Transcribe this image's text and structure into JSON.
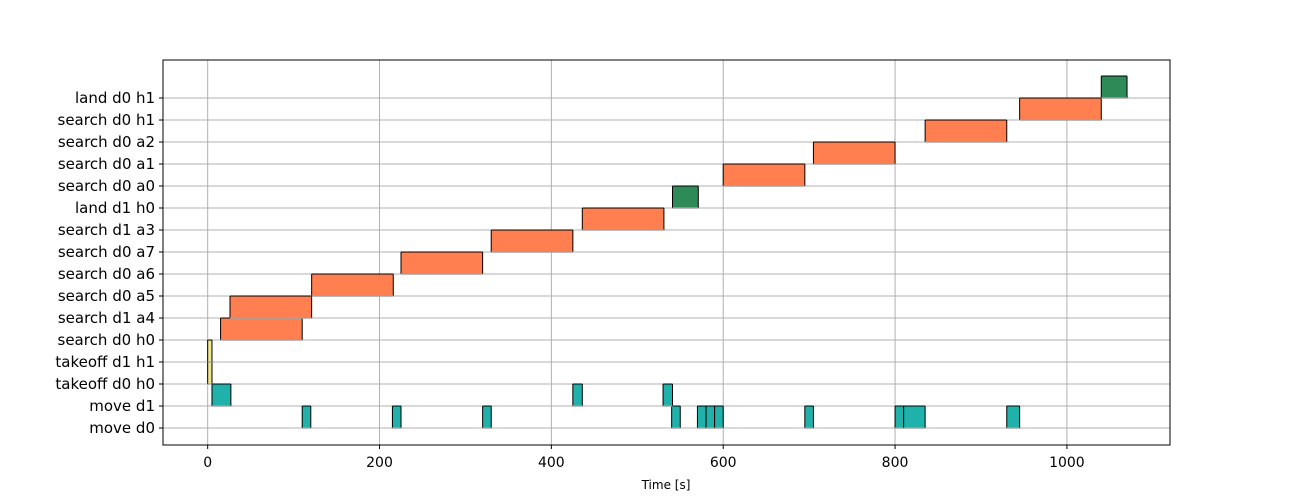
{
  "chart_data": {
    "type": "gantt",
    "xlabel": "Time [s]",
    "ylabel": "",
    "title": "",
    "xlim": [
      -52,
      1120
    ],
    "xticks": [
      0,
      200,
      400,
      600,
      800,
      1000
    ],
    "grid": true,
    "categories": [
      "move d0",
      "move d1",
      "takeoff d0 h0",
      "takeoff d1 h1",
      "search d0 h0",
      "search d1 a4",
      "search d0 a5",
      "search d0 a6",
      "search d0 a7",
      "search d1 a3",
      "land d1 h0",
      "search d0 a0",
      "search d0 a1",
      "search d0 a2",
      "search d0 h1",
      "land d0 h1"
    ],
    "colors": {
      "move": "#20b2aa",
      "takeoff": "#f0e68c",
      "search": "#ff7f50",
      "land": "#2e8b57"
    },
    "tasks": [
      {
        "row": "move d0",
        "start": 110,
        "end": 120,
        "kind": "move"
      },
      {
        "row": "move d0",
        "start": 215,
        "end": 225,
        "kind": "move"
      },
      {
        "row": "move d0",
        "start": 320,
        "end": 330,
        "kind": "move"
      },
      {
        "row": "move d0",
        "start": 540,
        "end": 550,
        "kind": "move"
      },
      {
        "row": "move d0",
        "start": 570,
        "end": 580,
        "kind": "move"
      },
      {
        "row": "move d0",
        "start": 580,
        "end": 590,
        "kind": "move"
      },
      {
        "row": "move d0",
        "start": 590,
        "end": 600,
        "kind": "move"
      },
      {
        "row": "move d0",
        "start": 695,
        "end": 705,
        "kind": "move"
      },
      {
        "row": "move d0",
        "start": 800,
        "end": 810,
        "kind": "move"
      },
      {
        "row": "move d0",
        "start": 810,
        "end": 835,
        "kind": "move"
      },
      {
        "row": "move d0",
        "start": 930,
        "end": 945,
        "kind": "move"
      },
      {
        "row": "move d1",
        "start": 5,
        "end": 27,
        "kind": "move"
      },
      {
        "row": "move d1",
        "start": 425,
        "end": 436,
        "kind": "move"
      },
      {
        "row": "move d1",
        "start": 530,
        "end": 541,
        "kind": "move"
      },
      {
        "row": "takeoff d0 h0",
        "start": 0,
        "end": 5,
        "kind": "takeoff"
      },
      {
        "row": "takeoff d1 h1",
        "start": 0,
        "end": 5,
        "kind": "takeoff"
      },
      {
        "row": "search d0 h0",
        "start": 15,
        "end": 110,
        "kind": "search"
      },
      {
        "row": "search d1 a4",
        "start": 26,
        "end": 121,
        "kind": "search"
      },
      {
        "row": "search d0 a5",
        "start": 121,
        "end": 216,
        "kind": "search"
      },
      {
        "row": "search d0 a6",
        "start": 225,
        "end": 320,
        "kind": "search"
      },
      {
        "row": "search d0 a7",
        "start": 330,
        "end": 425,
        "kind": "search"
      },
      {
        "row": "search d1 a3",
        "start": 436,
        "end": 531,
        "kind": "search"
      },
      {
        "row": "land d1 h0",
        "start": 541,
        "end": 571,
        "kind": "land"
      },
      {
        "row": "search d0 a0",
        "start": 600,
        "end": 695,
        "kind": "search"
      },
      {
        "row": "search d0 a1",
        "start": 705,
        "end": 800,
        "kind": "search"
      },
      {
        "row": "search d0 a2",
        "start": 835,
        "end": 930,
        "kind": "search"
      },
      {
        "row": "search d0 h1",
        "start": 945,
        "end": 1040,
        "kind": "search"
      },
      {
        "row": "land d0 h1",
        "start": 1040,
        "end": 1070,
        "kind": "land"
      }
    ]
  }
}
